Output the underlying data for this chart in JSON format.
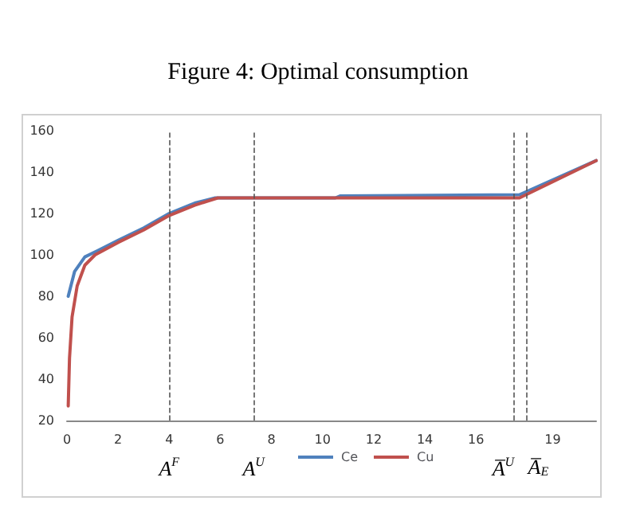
{
  "chart_data": {
    "type": "line",
    "title": "Figure 4: Optimal consumption",
    "series": [
      {
        "name": "Ce",
        "color": "#4f81bd",
        "x": [
          0.05,
          0.3,
          0.7,
          1.2,
          2,
          3,
          4,
          5,
          5.8,
          10.5,
          10.7,
          17.7,
          20.7
        ],
        "values": [
          80,
          92,
          99,
          102,
          107,
          113,
          120,
          125,
          127.5,
          127.5,
          128.5,
          129,
          145.5
        ]
      },
      {
        "name": "Cu",
        "color": "#c0504d",
        "x": [
          0.05,
          0.1,
          0.2,
          0.4,
          0.7,
          1.1,
          2,
          3,
          4,
          5,
          5.9,
          10,
          17.7,
          20.7
        ],
        "values": [
          27,
          50,
          70,
          85,
          95,
          100,
          106,
          112,
          119,
          124,
          127.5,
          127.5,
          127.5,
          145.5
        ]
      }
    ],
    "xlim": [
      0,
      20.7
    ],
    "xticks": [
      0,
      2,
      4,
      6,
      8,
      10,
      12,
      14,
      16,
      19
    ],
    "ylim": [
      20,
      160
    ],
    "yticks": [
      20,
      40,
      60,
      80,
      100,
      120,
      140,
      160
    ],
    "ref_lines": [
      {
        "axis": "x",
        "value": 4,
        "label": "A$^{F}$",
        "line_style": "dashed",
        "color": "#555555"
      },
      {
        "axis": "x",
        "value": 7.3,
        "label": "A$^{U}$",
        "line_style": "dashed",
        "color": "#555555"
      },
      {
        "axis": "x",
        "value": 17.5,
        "label": "A̅$^{U}$",
        "line_style": "dashed",
        "color": "#555555"
      },
      {
        "axis": "x",
        "value": 18,
        "label": "A̅$_{E}$",
        "line_style": "dashed",
        "color": "#555555"
      }
    ],
    "grid": false,
    "legend": "bottom",
    "marker": "none",
    "line_style": "solid"
  }
}
